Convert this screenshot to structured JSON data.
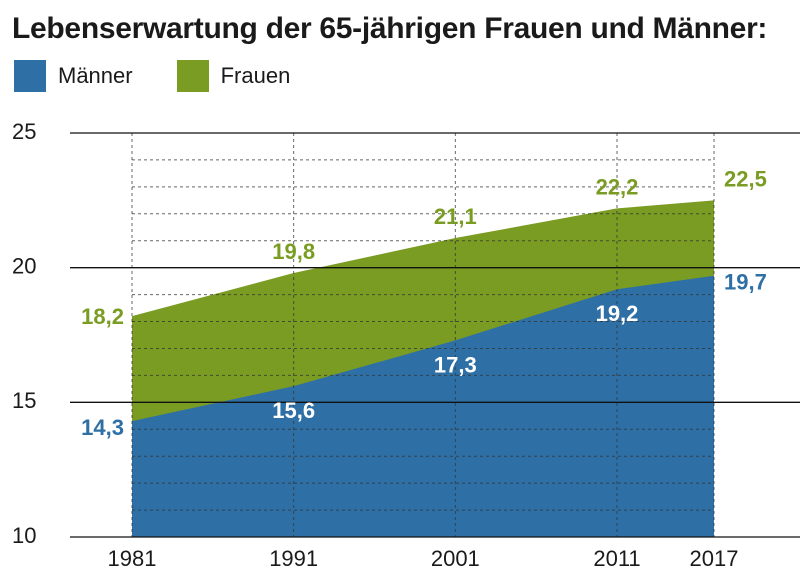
{
  "chart_data": {
    "type": "area",
    "title": "Lebenserwartung der 65-jährigen Frauen und Männer:",
    "x": [
      1981,
      1991,
      2001,
      2011,
      2017
    ],
    "x_tick_labels": [
      "1981",
      "1991",
      "2001",
      "2011",
      "2017"
    ],
    "series": [
      {
        "name": "Männer",
        "values": [
          14.3,
          15.6,
          17.3,
          19.2,
          19.7
        ],
        "labels": [
          "14,3",
          "15,6",
          "17,3",
          "19,2",
          "19,7"
        ],
        "color": "#2e6fa5"
      },
      {
        "name": "Frauen",
        "values": [
          18.2,
          19.8,
          21.1,
          22.2,
          22.5
        ],
        "labels": [
          "18,2",
          "19,8",
          "21,1",
          "22,2",
          "22,5"
        ],
        "color": "#7a9c22"
      }
    ],
    "ylim": [
      10,
      25
    ],
    "y_ticks": [
      10,
      15,
      20,
      25
    ],
    "y_tick_labels": [
      "10",
      "15",
      "20",
      "25"
    ],
    "y_minor_step": 1,
    "grid": true,
    "legend_position": "top-left"
  }
}
